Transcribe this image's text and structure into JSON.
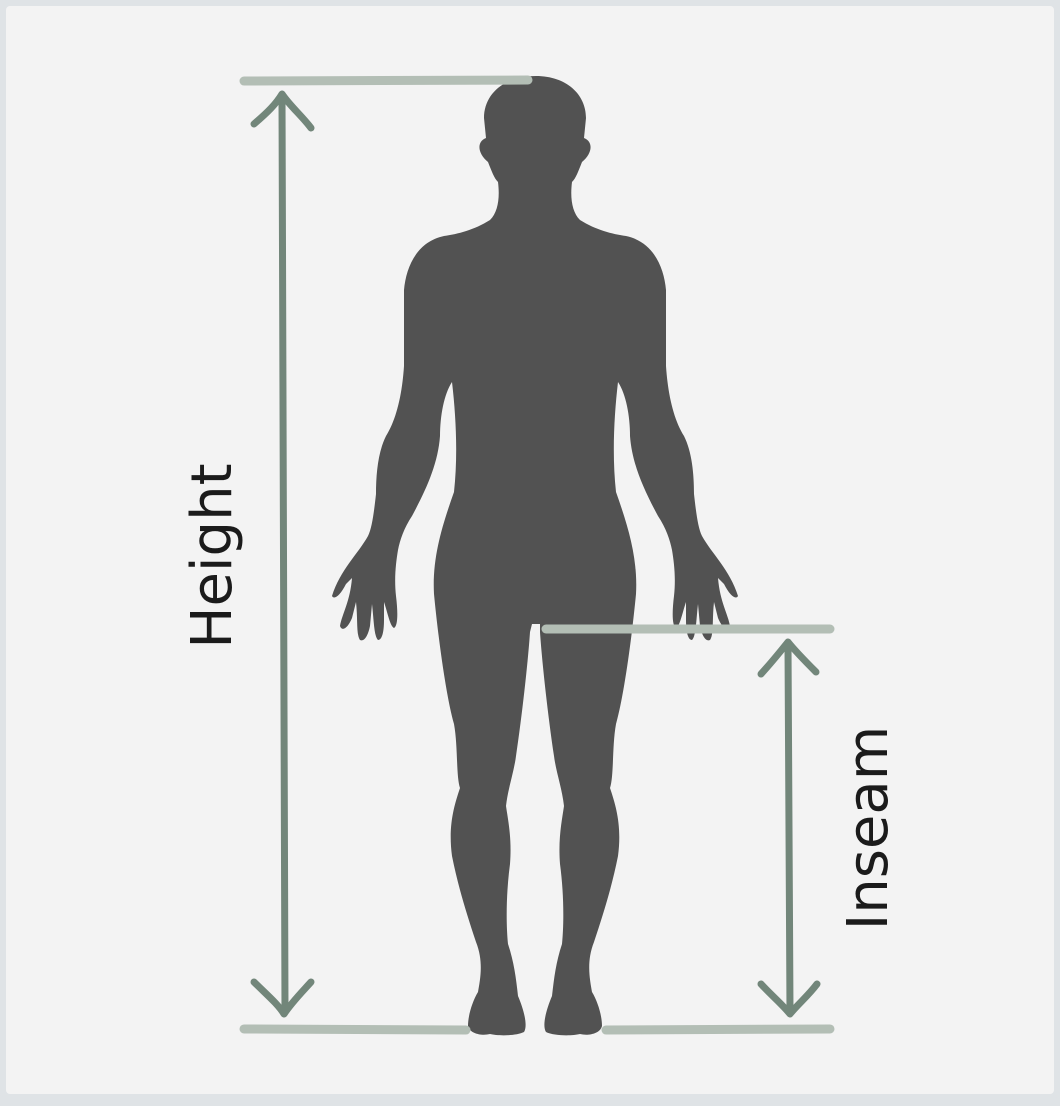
{
  "labels": {
    "height": "Height",
    "inseam": "Inseam"
  },
  "colors": {
    "background": "#f3f3f3",
    "frame": "#dfe3e6",
    "figure": "#525252",
    "arrow": "#72867a",
    "guide": "#b3beb5",
    "text": "#1b1b1b"
  }
}
